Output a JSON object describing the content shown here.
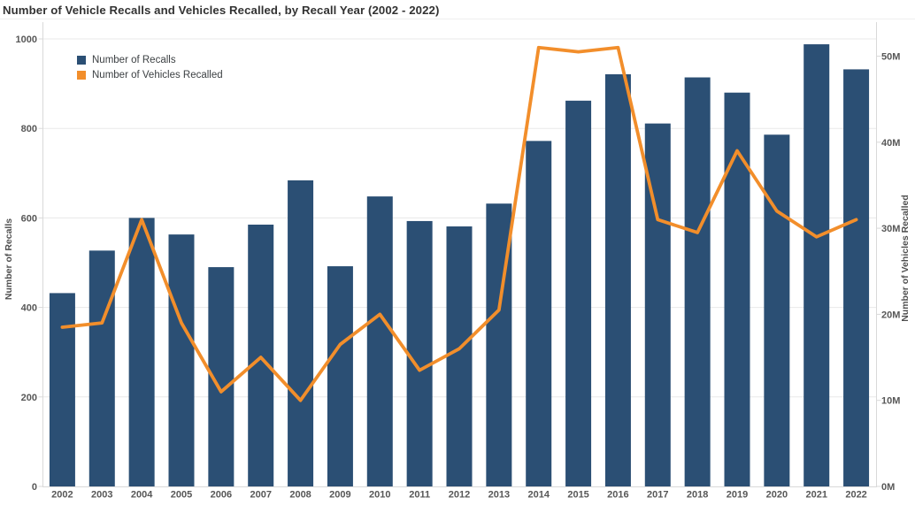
{
  "title": "Number of Vehicle Recalls and Vehicles Recalled, by Recall Year (2002 - 2022)",
  "legend": {
    "position": "inside-top-left",
    "items": [
      {
        "label": "Number of Recalls",
        "color": "#2b4f74",
        "series_type": "bar"
      },
      {
        "label": "Number of Vehicles Recalled",
        "color": "#f28e2b",
        "series_type": "line"
      }
    ]
  },
  "colors": {
    "background": "#ffffff",
    "bar": "#2b4f74",
    "line": "#f28e2b",
    "gridline": "#e8e8e8",
    "axis_line": "#d9d9d9",
    "tick_text": "#575757",
    "title_text": "#323232",
    "axis_title_text": "#4e4e4e"
  },
  "chart_data": {
    "type": "bar",
    "subtype": "dual-axis combo: bars (left axis) + line (right axis)",
    "title": "Number of Vehicle Recalls and Vehicles Recalled, by Recall Year (2002 - 2022)",
    "categories": [
      "2002",
      "2003",
      "2004",
      "2005",
      "2006",
      "2007",
      "2008",
      "2009",
      "2010",
      "2011",
      "2012",
      "2013",
      "2014",
      "2015",
      "2016",
      "2017",
      "2018",
      "2019",
      "2020",
      "2021",
      "2022"
    ],
    "series": [
      {
        "name": "Number of Recalls",
        "type": "bar",
        "axis": "left",
        "color": "#2b4f74",
        "values": [
          432,
          527,
          600,
          563,
          490,
          585,
          684,
          492,
          648,
          593,
          581,
          632,
          772,
          862,
          921,
          811,
          914,
          880,
          786,
          988,
          932
        ]
      },
      {
        "name": "Number of Vehicles Recalled",
        "type": "line",
        "axis": "right",
        "color": "#f28e2b",
        "values_millions": [
          18.5,
          19,
          31,
          19,
          11,
          15,
          10,
          16.5,
          20,
          13.5,
          16,
          20.5,
          51,
          50.5,
          51,
          31,
          29.5,
          39,
          32,
          29,
          31
        ]
      }
    ],
    "y_axis_left": {
      "label": "Number of Recalls",
      "tick_labels": [
        "0",
        "200",
        "400",
        "600",
        "800",
        "1000"
      ],
      "tick_values": [
        0,
        200,
        400,
        600,
        800,
        1000
      ],
      "range": [
        0,
        1000
      ]
    },
    "y_axis_right": {
      "label": "Number of Vehicles Recalled",
      "tick_labels": [
        "0M",
        "10M",
        "20M",
        "30M",
        "40M",
        "50M"
      ],
      "tick_values_millions": [
        0,
        10,
        20,
        30,
        40,
        50
      ],
      "range_millions": [
        0,
        52
      ]
    },
    "x_axis": {
      "label": "",
      "tick_labels": [
        "2002",
        "2003",
        "2004",
        "2005",
        "2006",
        "2007",
        "2008",
        "2009",
        "2010",
        "2011",
        "2012",
        "2013",
        "2014",
        "2015",
        "2016",
        "2017",
        "2018",
        "2019",
        "2020",
        "2021",
        "2022"
      ]
    },
    "grid": "horizontal",
    "legend_position": "inside-top-left"
  }
}
